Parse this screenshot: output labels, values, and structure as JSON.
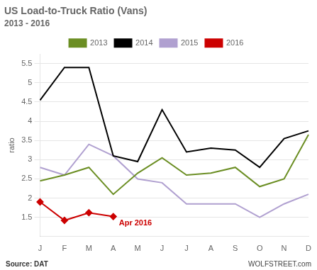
{
  "chart_data": {
    "type": "line",
    "title": "US Load-to-Truck Ratio (Vans)",
    "subtitle": "2013 - 2016",
    "y_label": "ratio",
    "source": "Source: DAT",
    "credit": "WOLFSTREET.com",
    "categories": [
      "J",
      "F",
      "M",
      "A",
      "M",
      "J",
      "J",
      "A",
      "S",
      "O",
      "N",
      "D"
    ],
    "series": [
      {
        "name": "2013",
        "color": "#6b8e23",
        "values": [
          2.45,
          2.6,
          2.8,
          2.1,
          2.65,
          3.05,
          2.6,
          2.65,
          2.8,
          2.3,
          2.5,
          3.65
        ]
      },
      {
        "name": "2014",
        "color": "#000000",
        "values": [
          4.55,
          5.4,
          5.4,
          3.1,
          2.95,
          4.3,
          3.2,
          3.3,
          3.25,
          2.8,
          3.55,
          3.75
        ]
      },
      {
        "name": "2015",
        "color": "#b0a0d0",
        "values": [
          2.8,
          2.6,
          3.4,
          3.1,
          2.5,
          2.4,
          1.85,
          1.85,
          1.85,
          1.5,
          1.85,
          2.1
        ]
      },
      {
        "name": "2016",
        "color": "#cc0000",
        "marker": "diamond",
        "values": [
          1.9,
          1.42,
          1.62,
          1.52,
          null,
          null,
          null,
          null,
          null,
          null,
          null,
          null
        ]
      }
    ],
    "annotations": [
      {
        "text": "Apr 2016",
        "x": 3,
        "y": 1.52,
        "color": "#cc0000"
      }
    ],
    "ylim": [
      1.0,
      5.75
    ],
    "yticks": [
      1.5,
      2.0,
      2.5,
      3.0,
      3.5,
      4.0,
      4.5,
      5.0,
      5.5
    ],
    "grid": true,
    "legend": "top"
  }
}
